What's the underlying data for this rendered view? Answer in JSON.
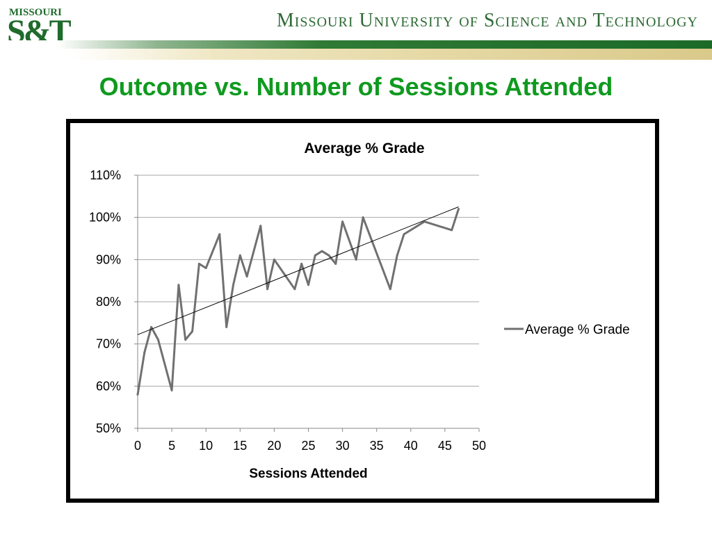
{
  "header": {
    "logo_top": "MISSOURI",
    "logo_main": "S&T",
    "university": "Missouri University of Science and Technology"
  },
  "slide": {
    "title": "Outcome vs. Number of Sessions Attended"
  },
  "colors": {
    "title": "#0f9a1f",
    "header_green": "#1f6b2c",
    "series": "#707070",
    "trendline": "#000000",
    "gridline": "#a6a6a6"
  },
  "chart_data": {
    "type": "line",
    "title": "Average % Grade",
    "xlabel": "Sessions Attended",
    "ylabel": "",
    "xlim": [
      0,
      50
    ],
    "ylim": [
      50,
      110
    ],
    "x_ticks": [
      0,
      5,
      10,
      15,
      20,
      25,
      30,
      35,
      40,
      45,
      50
    ],
    "x_tick_labels": [
      "0",
      "5",
      "10",
      "15",
      "20",
      "25",
      "30",
      "35",
      "40",
      "45",
      "50"
    ],
    "y_ticks": [
      50,
      60,
      70,
      80,
      90,
      100,
      110
    ],
    "y_tick_labels": [
      "50%",
      "60%",
      "70%",
      "80%",
      "90%",
      "100%",
      "110%"
    ],
    "grid": true,
    "legend_position": "right",
    "series": [
      {
        "name": "Average % Grade",
        "x": [
          0,
          1,
          2,
          3,
          5,
          6,
          7,
          8,
          9,
          10,
          12,
          13,
          14,
          15,
          16,
          18,
          19,
          20,
          23,
          24,
          25,
          26,
          27,
          28,
          29,
          30,
          32,
          33,
          37,
          38,
          39,
          42,
          46,
          47
        ],
        "y": [
          58,
          68,
          74,
          71,
          59,
          84,
          71,
          73,
          89,
          88,
          96,
          74,
          84,
          91,
          86,
          98,
          83,
          90,
          83,
          89,
          84,
          91,
          92,
          91,
          89,
          99,
          90,
          100,
          83,
          91,
          96,
          99,
          97,
          102
        ]
      }
    ],
    "trendline": {
      "x": [
        0,
        47
      ],
      "y": [
        72.2,
        102.5
      ]
    }
  }
}
